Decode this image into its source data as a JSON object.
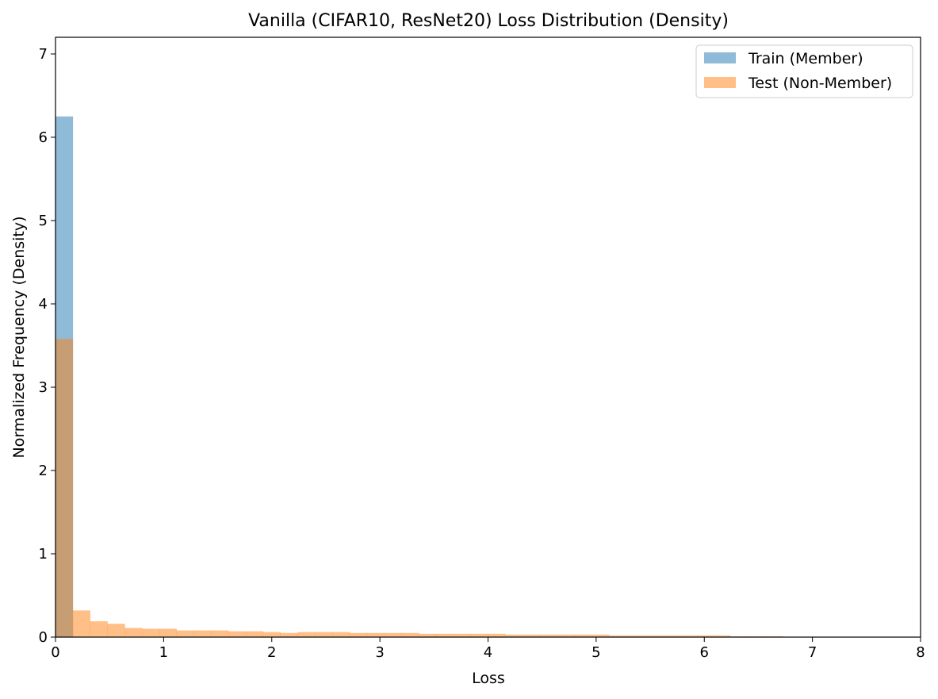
{
  "chart_data": {
    "type": "bar",
    "title": "Vanilla (CIFAR10, ResNet20) Loss Distribution (Density)",
    "xlabel": "Loss",
    "ylabel": "Normalized Frequency (Density)",
    "xlim": [
      0,
      8
    ],
    "ylim": [
      0,
      7.2
    ],
    "xticks": [
      0,
      1,
      2,
      3,
      4,
      5,
      6,
      7,
      8
    ],
    "yticks": [
      0,
      1,
      2,
      3,
      4,
      5,
      6,
      7
    ],
    "grid": false,
    "legend_position": "top-right",
    "bin_width": 0.16,
    "series": [
      {
        "name": "Train (Member)",
        "color": "#1f77b4",
        "opacity": 0.5,
        "bin_start": [
          0.0
        ],
        "values": [
          6.25
        ]
      },
      {
        "name": "Test (Non-Member)",
        "color": "#ff7f0e",
        "opacity": 0.5,
        "bin_start": [
          0.0,
          0.16,
          0.32,
          0.48,
          0.64,
          0.8,
          0.96,
          1.12,
          1.28,
          1.44,
          1.6,
          1.76,
          1.92,
          2.08,
          2.24,
          2.4,
          2.56,
          2.72,
          2.88,
          3.04,
          3.2,
          3.36,
          3.52,
          3.68,
          3.84,
          4.0,
          4.16,
          4.32,
          4.48,
          4.64,
          4.8,
          4.96,
          5.12,
          5.28,
          5.44,
          5.6,
          5.76,
          5.92,
          6.08,
          6.24,
          6.4,
          6.56,
          6.72,
          6.88,
          7.04,
          7.2,
          7.36,
          7.52
        ],
        "values": [
          3.58,
          0.32,
          0.19,
          0.16,
          0.11,
          0.1,
          0.1,
          0.08,
          0.08,
          0.08,
          0.07,
          0.07,
          0.06,
          0.05,
          0.06,
          0.06,
          0.06,
          0.05,
          0.05,
          0.05,
          0.05,
          0.04,
          0.04,
          0.04,
          0.04,
          0.04,
          0.03,
          0.03,
          0.03,
          0.03,
          0.03,
          0.03,
          0.02,
          0.02,
          0.02,
          0.02,
          0.02,
          0.02,
          0.02,
          0.01,
          0.01,
          0.01,
          0.005,
          0.005,
          0.005,
          0.003,
          0.003,
          0.002
        ]
      }
    ]
  }
}
